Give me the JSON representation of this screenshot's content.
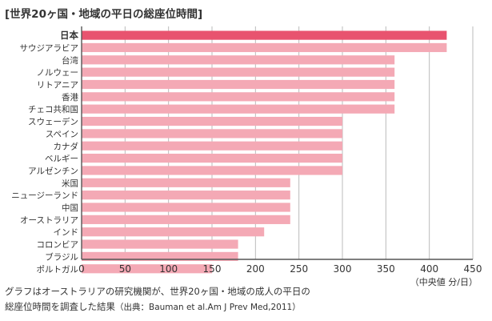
{
  "chart_data": {
    "type": "bar",
    "orientation": "horizontal",
    "title": "[世界20ヶ国・地域の平日の総座位時間]",
    "categories": [
      "日本",
      "サウジアラビア",
      "台湾",
      "ノルウェー",
      "リトアニア",
      "香港",
      "チェコ共和国",
      "スウェーデン",
      "スペイン",
      "カナダ",
      "ベルギー",
      "アルゼンチン",
      "米国",
      "ニュージーランド",
      "中国",
      "オーストラリア",
      "インド",
      "コロンビア",
      "ブラジル",
      "ポルトガル"
    ],
    "values": [
      420,
      420,
      360,
      360,
      360,
      360,
      360,
      300,
      300,
      300,
      300,
      300,
      240,
      240,
      240,
      240,
      210,
      180,
      180,
      150
    ],
    "highlight_index": 0,
    "colors": {
      "bar": "#f4a9b5",
      "highlight": "#e8536f",
      "axis": "#555555",
      "grid": "#bbbbbb"
    },
    "xlim": [
      0,
      450
    ],
    "xticks": [
      0,
      50,
      100,
      150,
      200,
      250,
      300,
      350,
      400,
      450
    ],
    "xlabel": "（中央値 分/日）",
    "grid": true
  },
  "caption": {
    "line1": "グラフはオーストラリアの研究機関が、世界20ヶ国・地域の成人の平日の",
    "line2": "総座位時間を調査した結果",
    "source": "（出典：Bauman et al.Am J Prev Med,2011）"
  }
}
